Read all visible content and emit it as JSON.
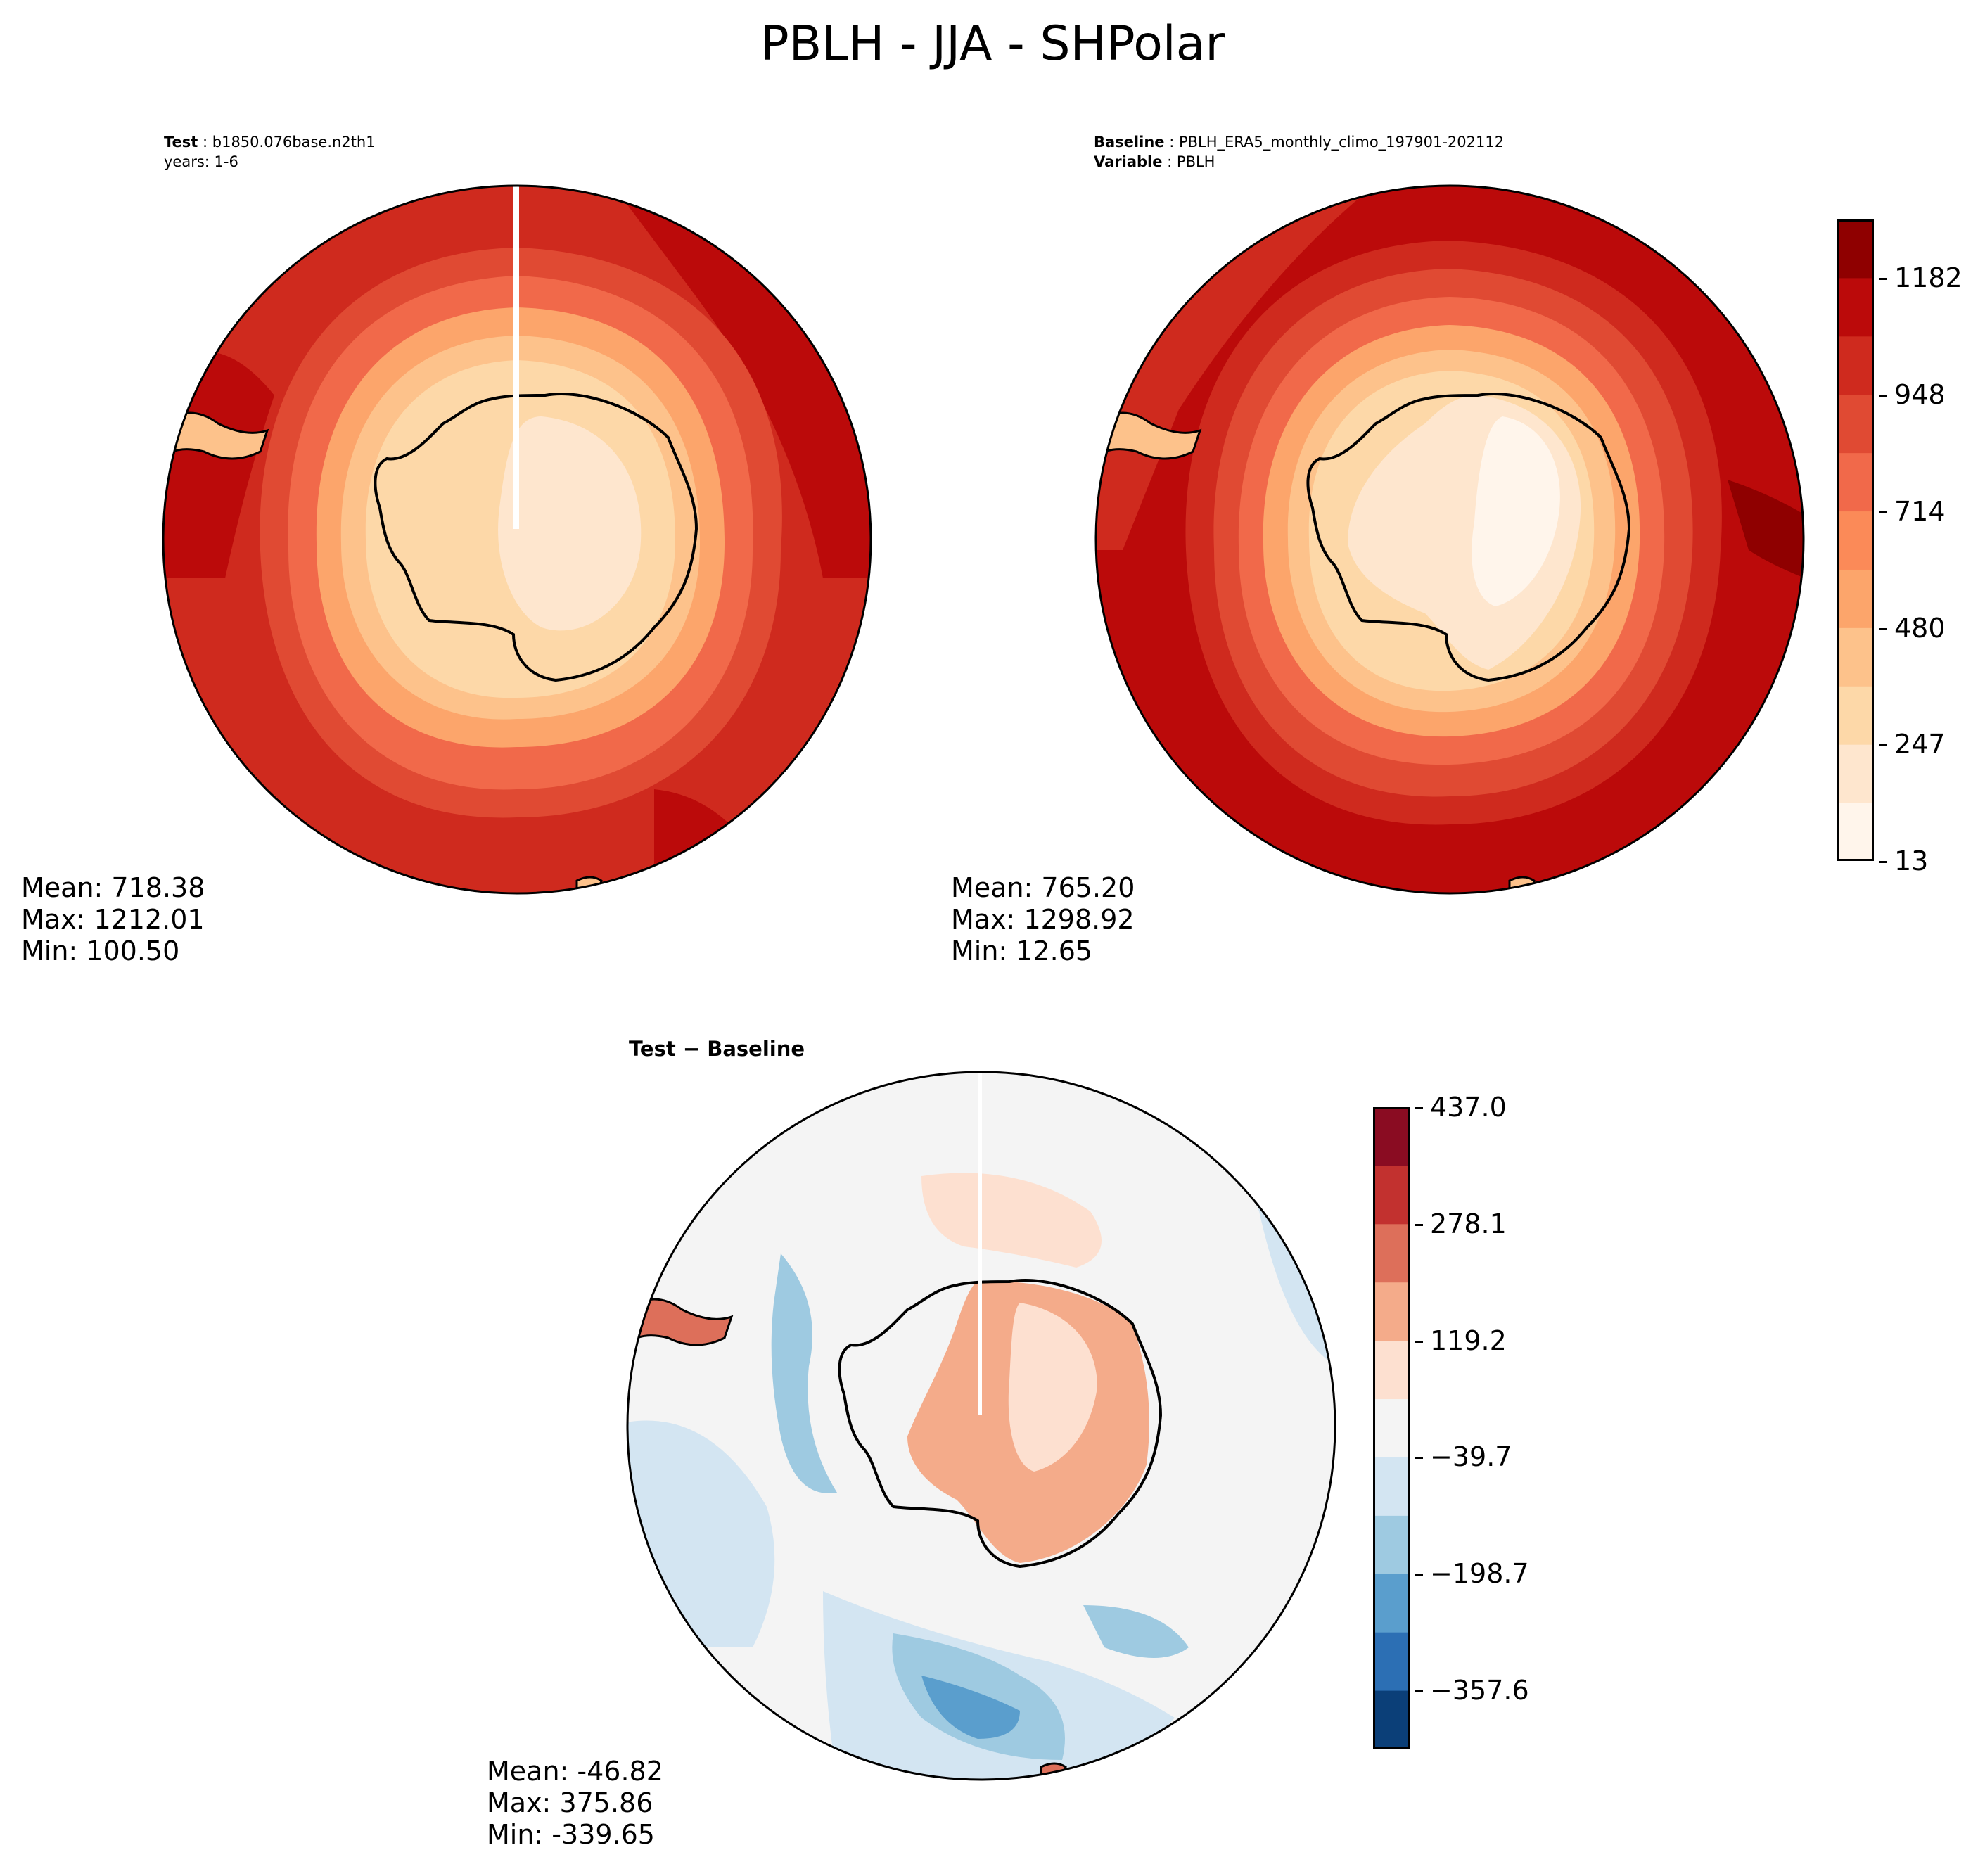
{
  "figure": {
    "title": "PBLH - JJA - SHPolar"
  },
  "panels": {
    "test": {
      "label_key": "Test",
      "label_value": " : b1850.076base.n2th1",
      "years": "years: 1-6",
      "stats": {
        "mean": "Mean: 718.38",
        "max": "Max: 1212.01",
        "min": "Min: 100.50"
      }
    },
    "baseline": {
      "label_key": "Baseline",
      "label_value": " : PBLH_ERA5_monthly_climo_197901-202112",
      "variable_key": "Variable",
      "variable_value": " : PBLH",
      "stats": {
        "mean": "Mean: 765.20",
        "max": "Max: 1298.92",
        "min": "Min: 12.65"
      }
    },
    "diff": {
      "title": "Test − Baseline",
      "stats": {
        "mean": "Mean: -46.82",
        "max": "Max: 375.86",
        "min": "Min: -339.65"
      }
    }
  },
  "colorbars": {
    "main": {
      "ticks": [
        "13",
        "247",
        "480",
        "714",
        "948",
        "1182"
      ],
      "tick_values": [
        13,
        247,
        480,
        714,
        948,
        1182
      ],
      "range": [
        13,
        1299
      ],
      "colors": [
        "#fff5eb",
        "#fee6ce",
        "#fdd8a8",
        "#fdc28b",
        "#fca56b",
        "#fb8a58",
        "#f1694a",
        "#e04a33",
        "#cf2a1e",
        "#bb0a0a",
        "#8f0000"
      ]
    },
    "diff": {
      "ticks": [
        "437.0",
        "278.1",
        "119.2",
        "−39.7",
        "−198.7",
        "−357.6"
      ],
      "tick_values": [
        437.0,
        278.1,
        119.2,
        -39.7,
        -198.7,
        -357.6
      ],
      "range": [
        -437.0,
        437.0
      ],
      "colors": [
        "#0b3f78",
        "#2c6fb4",
        "#5a9ecd",
        "#9ecae1",
        "#d3e5f2",
        "#f4f4f4",
        "#fde0d0",
        "#f4ab8a",
        "#dd6f5a",
        "#c2312f",
        "#8a0c22"
      ]
    }
  },
  "map_colors": {
    "ocean_outer": "#cf2a1e",
    "ocean_dark": "#bb0a0a",
    "ocean_mid": "#e04a33",
    "ring_1": "#f1694a",
    "ring_2": "#fca56b",
    "ring_3": "#fdc28b",
    "continent": "#fdd8a8",
    "continent_light": "#fee6ce",
    "diff_bg": "#f4f4f4",
    "diff_light_blue": "#d3e5f2",
    "diff_blue": "#9ecae1",
    "diff_darkblue": "#5a9ecd",
    "diff_red": "#f4ab8a",
    "diff_pink": "#fde0d0"
  }
}
